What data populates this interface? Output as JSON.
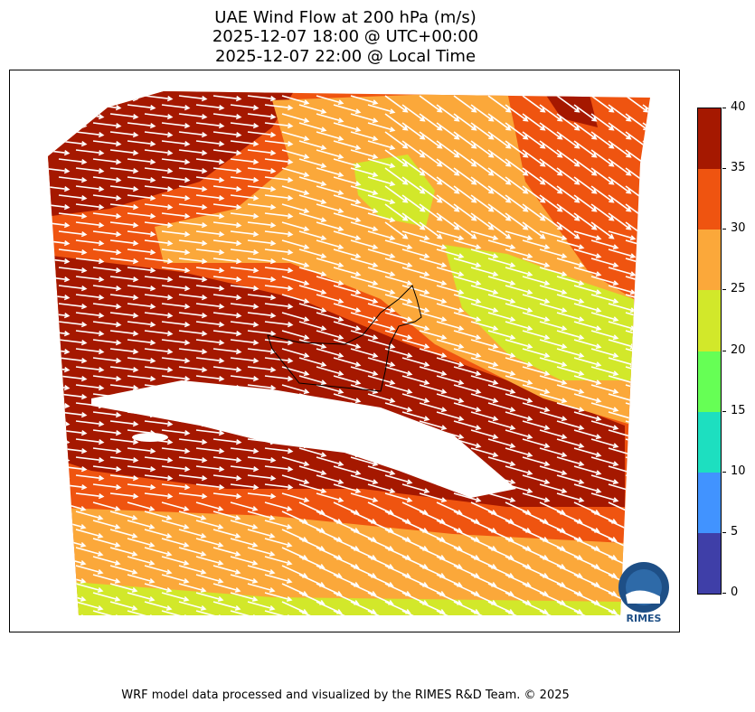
{
  "title": {
    "line1": "UAE Wind Flow at 200 hPa (m/s)",
    "line2": "2025-12-07 18:00 @ UTC+00:00",
    "line3": "2025-12-07 22:00 @ Local Time"
  },
  "colorbar": {
    "ticks": [
      "0",
      "5",
      "10",
      "15",
      "20",
      "25",
      "30",
      "35",
      "40"
    ],
    "colors": [
      "#3f3fa8",
      "#4193ff",
      "#1ddfc0",
      "#66ff55",
      "#d2e82a",
      "#fba83a",
      "#ef5410",
      "#a51800"
    ]
  },
  "logo": {
    "text": "RIMES",
    "ring_text": "Regional Integrated Multi-Hazard Early Warning System"
  },
  "footer": "WRF model data processed and visualized by the RIMES R&D Team. © 2025",
  "chart_data": {
    "type": "heatmap",
    "title": "UAE Wind Flow at 200 hPa (m/s)",
    "variable": "wind speed with flow vectors",
    "units": "m/s",
    "colorbar_range": [
      0,
      40
    ],
    "levels": [
      0,
      5,
      10,
      15,
      20,
      25,
      30,
      35,
      40
    ],
    "dominant_flow": "west-northwest to east-southeast",
    "speed_ranges_present": [
      "20-25",
      "25-30",
      "30-35",
      "35-40"
    ]
  }
}
